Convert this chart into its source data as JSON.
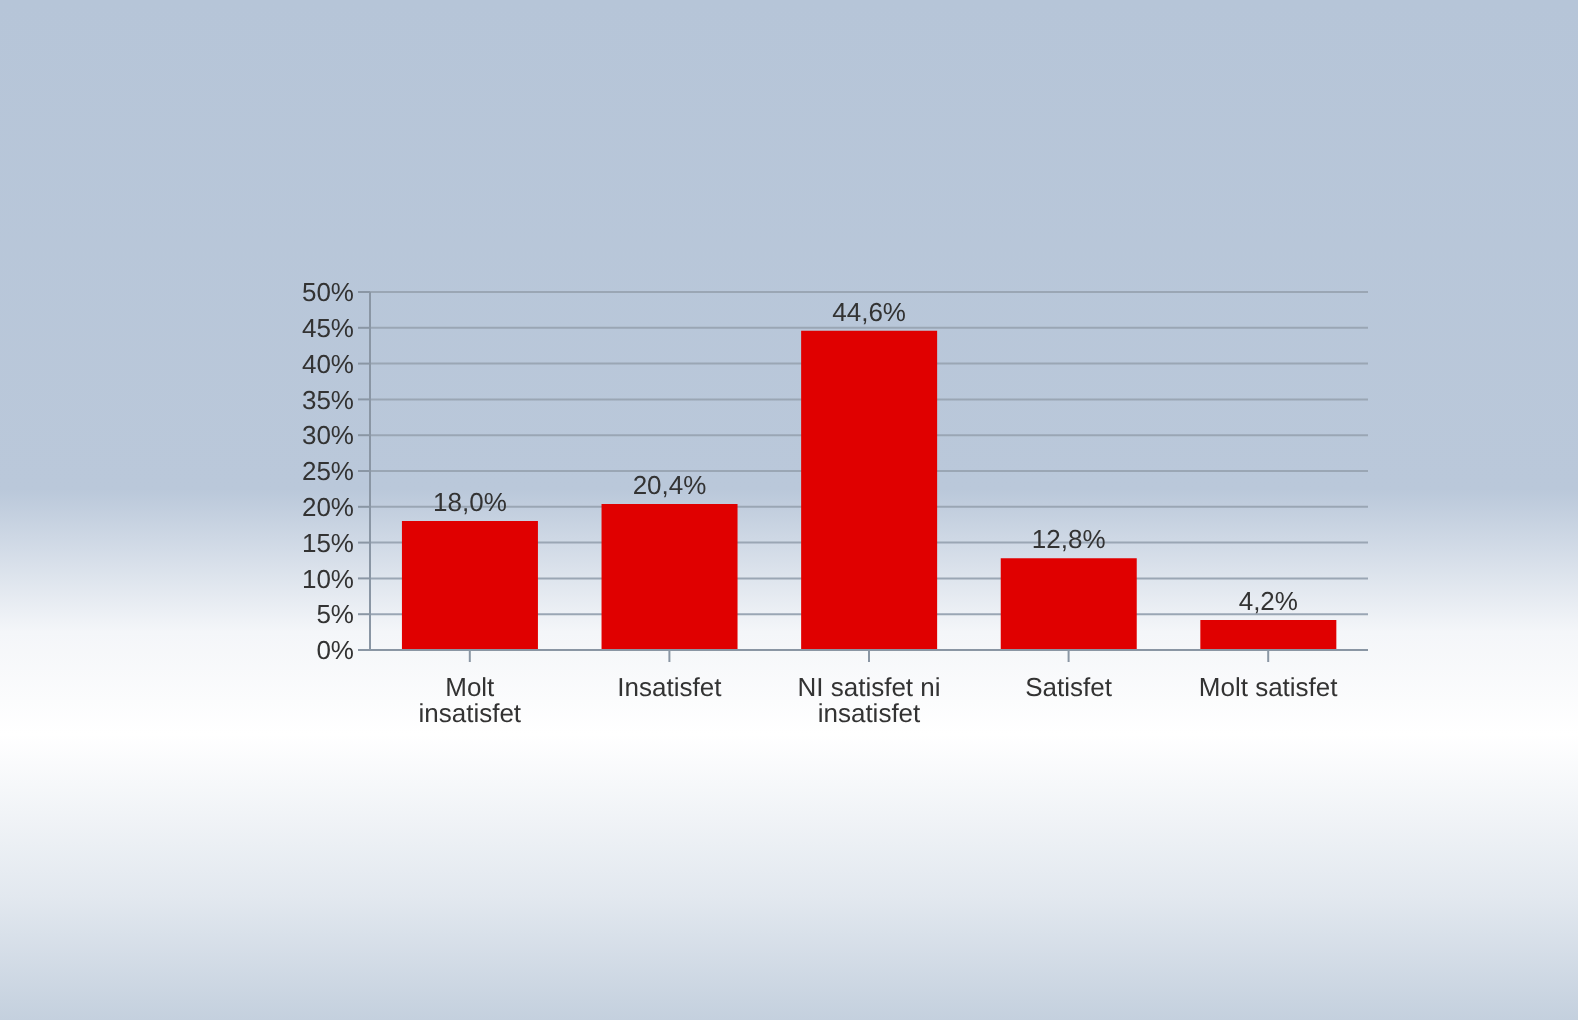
{
  "chart_data": {
    "type": "bar",
    "categories": [
      "Molt insatisfet",
      "Insatisfet",
      "NI satisfet ni insatisfet",
      "Satisfet",
      "Molt satisfet"
    ],
    "values": [
      18.0,
      20.4,
      44.6,
      12.8,
      4.2
    ],
    "color": "#e00000",
    "value_labels": [
      "18,0%",
      "20,4%",
      "44,6%",
      "12,8%",
      "4,2%"
    ],
    "ylim": [
      0,
      50
    ],
    "yticks": [
      {
        "value": 0,
        "label": "0%"
      },
      {
        "value": 5,
        "label": "5%"
      },
      {
        "value": 10,
        "label": "10%"
      },
      {
        "value": 15,
        "label": "15%"
      },
      {
        "value": 20,
        "label": "20%"
      },
      {
        "value": 25,
        "label": "25%"
      },
      {
        "value": 30,
        "label": "30%"
      },
      {
        "value": 35,
        "label": "35%"
      },
      {
        "value": 40,
        "label": "40%"
      },
      {
        "value": 45,
        "label": "45%"
      },
      {
        "value": 50,
        "label": "50%"
      }
    ],
    "grid": "y",
    "legend": false
  }
}
